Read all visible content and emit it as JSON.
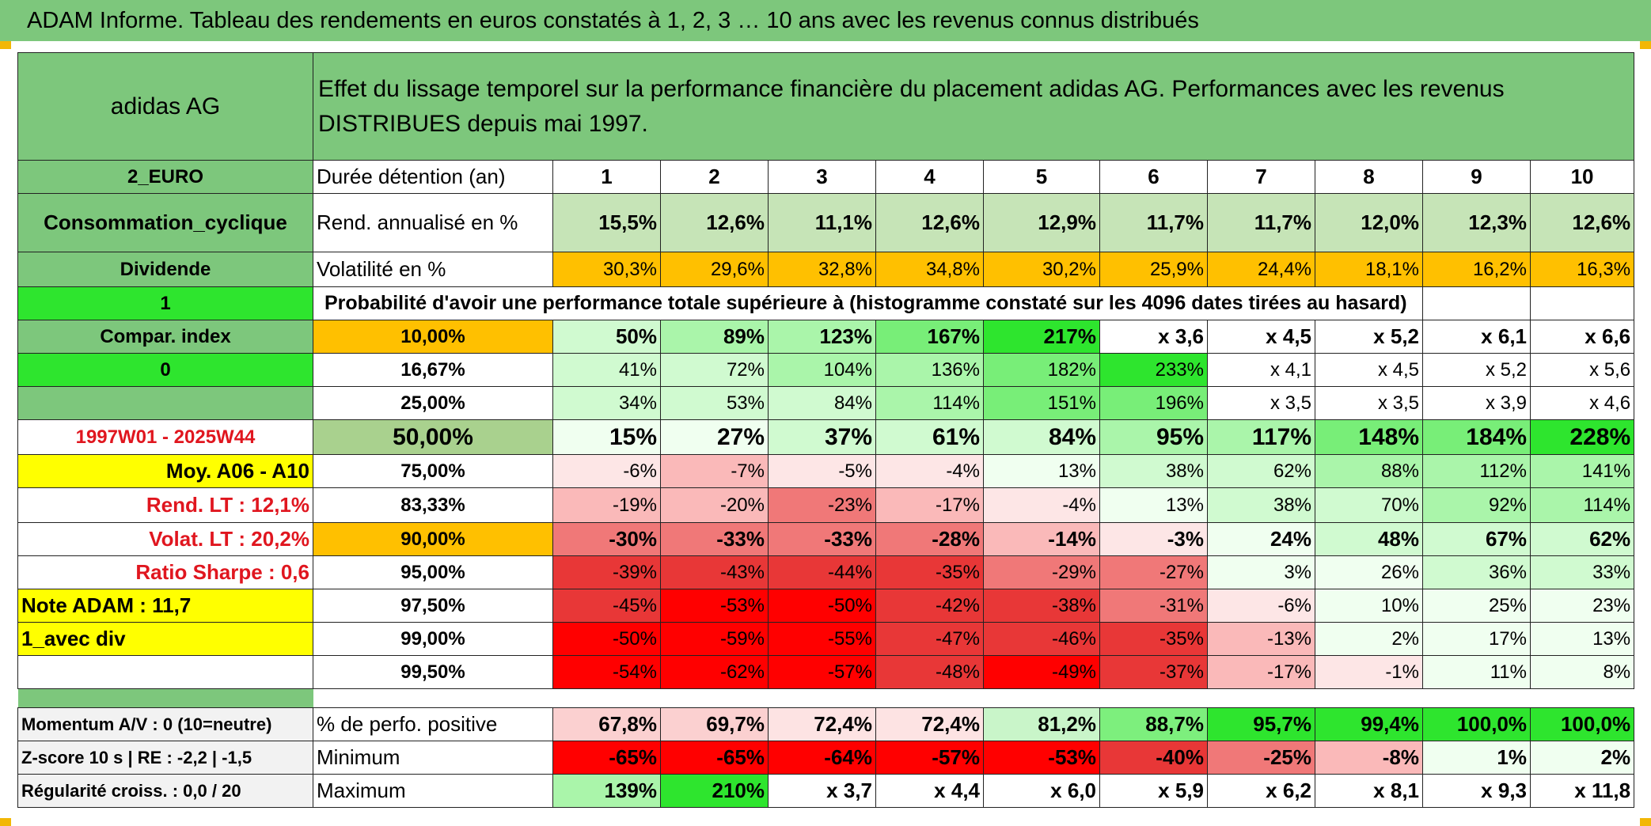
{
  "title": "ADAM Informe. Tableau des rendements en euros constatés à 1, 2, 3 … 10 ans avec les revenus connus distribués",
  "colors": {
    "header_green": "#7dc77c",
    "bright_green": "#2ee52e",
    "orange": "#ffc000",
    "yellow": "#ffff00",
    "red_text": "#e0161f"
  },
  "left": {
    "name": "adidas AG",
    "currency": "2_EURO",
    "sector": "Consommation_cyclique",
    "type": "Dividende",
    "flag1": "1",
    "compar": "Compar. index",
    "flag2": "0",
    "period": "1997W01 - 2025W44",
    "moy": "Moy. A06 - A10",
    "rend_lt": "Rend. LT :    12,1%",
    "volat_lt": "Volat. LT :    20,2%",
    "sharpe": "Ratio Sharpe :    0,6",
    "note": "Note ADAM : 11,7",
    "div": "1_avec div",
    "momentum": "Momentum A/V : 0 (10=neutre)",
    "zscore": "Z-score 10 s | RE : -2,2 | -1,5",
    "regularite": "Régularité croiss. : 0,0 / 20"
  },
  "main": {
    "description": "Effet du lissage temporel sur la performance financière du placement adidas AG. Performances avec les revenus DISTRIBUES depuis mai 1997.",
    "duree_label": "Durée détention (an)",
    "years": [
      "1",
      "2",
      "3",
      "4",
      "5",
      "6",
      "7",
      "8",
      "9",
      "10"
    ],
    "rend_label": "Rend. annualisé en %",
    "rend": [
      "15,5%",
      "12,6%",
      "11,1%",
      "12,6%",
      "12,9%",
      "11,7%",
      "11,7%",
      "12,0%",
      "12,3%",
      "12,6%"
    ],
    "vol_label": "Volatilité en %",
    "vol": [
      "30,3%",
      "29,6%",
      "32,8%",
      "34,8%",
      "30,2%",
      "25,9%",
      "24,4%",
      "18,1%",
      "16,2%",
      "16,3%"
    ],
    "prob_label": "Probabilité d'avoir une performance totale supérieure à (histogramme constaté sur les 4096 dates tirées au hasard)",
    "prob_rows": [
      {
        "p": "10,00%",
        "v": [
          "50%",
          "89%",
          "123%",
          "167%",
          "217%",
          "x 3,6",
          "x 4,5",
          "x 5,2",
          "x 6,1",
          "x 6,6"
        ]
      },
      {
        "p": "16,67%",
        "v": [
          "41%",
          "72%",
          "104%",
          "136%",
          "182%",
          "233%",
          "x 4,1",
          "x 4,5",
          "x 5,2",
          "x 5,6"
        ]
      },
      {
        "p": "25,00%",
        "v": [
          "34%",
          "53%",
          "84%",
          "114%",
          "151%",
          "196%",
          "x 3,5",
          "x 3,5",
          "x 3,9",
          "x 4,6"
        ]
      },
      {
        "p": "50,00%",
        "v": [
          "15%",
          "27%",
          "37%",
          "61%",
          "84%",
          "95%",
          "117%",
          "148%",
          "184%",
          "228%"
        ]
      },
      {
        "p": "75,00%",
        "v": [
          "-6%",
          "-7%",
          "-5%",
          "-4%",
          "13%",
          "38%",
          "62%",
          "88%",
          "112%",
          "141%"
        ]
      },
      {
        "p": "83,33%",
        "v": [
          "-19%",
          "-20%",
          "-23%",
          "-17%",
          "-4%",
          "13%",
          "38%",
          "70%",
          "92%",
          "114%"
        ]
      },
      {
        "p": "90,00%",
        "v": [
          "-30%",
          "-33%",
          "-33%",
          "-28%",
          "-14%",
          "-3%",
          "24%",
          "48%",
          "67%",
          "62%"
        ]
      },
      {
        "p": "95,00%",
        "v": [
          "-39%",
          "-43%",
          "-44%",
          "-35%",
          "-29%",
          "-27%",
          "3%",
          "26%",
          "36%",
          "33%"
        ]
      },
      {
        "p": "97,50%",
        "v": [
          "-45%",
          "-53%",
          "-50%",
          "-42%",
          "-38%",
          "-31%",
          "-6%",
          "10%",
          "25%",
          "23%"
        ]
      },
      {
        "p": "99,00%",
        "v": [
          "-50%",
          "-59%",
          "-55%",
          "-47%",
          "-46%",
          "-35%",
          "-13%",
          "2%",
          "17%",
          "13%"
        ]
      },
      {
        "p": "99,50%",
        "v": [
          "-54%",
          "-62%",
          "-57%",
          "-48%",
          "-49%",
          "-37%",
          "-17%",
          "-1%",
          "11%",
          "8%"
        ]
      }
    ],
    "pos_label": "% de perfo. positive",
    "pos": [
      "67,8%",
      "69,7%",
      "72,4%",
      "72,4%",
      "81,2%",
      "88,7%",
      "95,7%",
      "99,4%",
      "100,0%",
      "100,0%"
    ],
    "min_label": "Minimum",
    "min": [
      "-65%",
      "-65%",
      "-64%",
      "-57%",
      "-53%",
      "-40%",
      "-25%",
      "-8%",
      "1%",
      "2%"
    ],
    "max_label": "Maximum",
    "max": [
      "139%",
      "210%",
      "x 3,7",
      "x 4,4",
      "x 6,0",
      "x 5,9",
      "x 6,2",
      "x 8,1",
      "x 9,3",
      "x 11,8"
    ]
  }
}
